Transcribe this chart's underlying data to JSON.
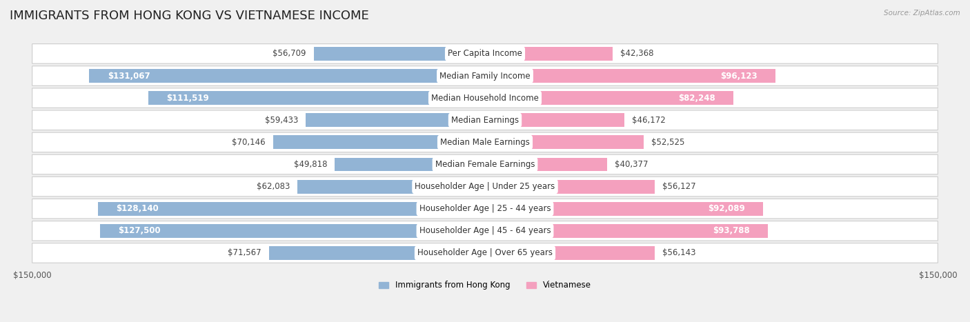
{
  "title": "IMMIGRANTS FROM HONG KONG VS VIETNAMESE INCOME",
  "source": "Source: ZipAtlas.com",
  "categories": [
    "Per Capita Income",
    "Median Family Income",
    "Median Household Income",
    "Median Earnings",
    "Median Male Earnings",
    "Median Female Earnings",
    "Householder Age | Under 25 years",
    "Householder Age | 25 - 44 years",
    "Householder Age | 45 - 64 years",
    "Householder Age | Over 65 years"
  ],
  "hk_values": [
    56709,
    131067,
    111519,
    59433,
    70146,
    49818,
    62083,
    128140,
    127500,
    71567
  ],
  "viet_values": [
    42368,
    96123,
    82248,
    46172,
    52525,
    40377,
    56127,
    92089,
    93788,
    56143
  ],
  "hk_labels": [
    "$56,709",
    "$131,067",
    "$111,519",
    "$59,433",
    "$70,146",
    "$49,818",
    "$62,083",
    "$128,140",
    "$127,500",
    "$71,567"
  ],
  "viet_labels": [
    "$42,368",
    "$96,123",
    "$82,248",
    "$46,172",
    "$52,525",
    "$40,377",
    "$56,127",
    "$92,089",
    "$93,788",
    "$56,143"
  ],
  "hk_color": "#92b4d5",
  "viet_color": "#f4a0be",
  "viet_color_hot": "#e8578a",
  "hk_color_hot": "#5b8dc4",
  "max_val": 150000,
  "bg_color": "#f0f0f0",
  "row_bg_color": "#ffffff",
  "row_border_color": "#cccccc",
  "legend_hk": "Immigrants from Hong Kong",
  "legend_viet": "Vietnamese",
  "title_fontsize": 13,
  "label_fontsize": 8.5,
  "category_fontsize": 8.5,
  "axis_fontsize": 8.5,
  "hk_inside_threshold": 90000,
  "viet_inside_threshold": 80000
}
